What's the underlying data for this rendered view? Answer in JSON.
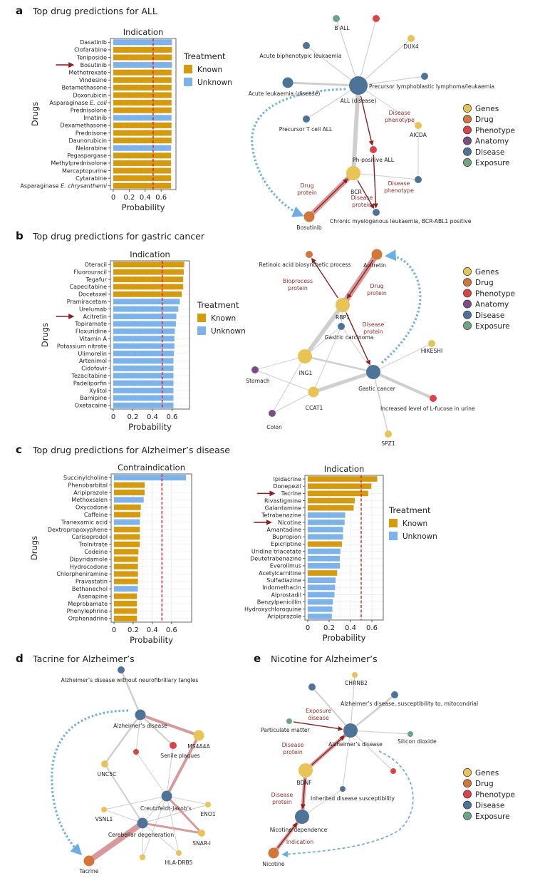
{
  "colors": {
    "known": "#D49A10",
    "unknown": "#7DB3E8",
    "threshold": "#D42020",
    "gene": "#E8C457",
    "drug": "#D2763A",
    "phenotype": "#D9434A",
    "anatomy": "#7B4F86",
    "disease": "#4D7498",
    "exposure": "#6FA583",
    "edge": "#cfcfcf",
    "path_edge": "#D9989A",
    "path_arrow": "#8E1F1F",
    "prediction": "#6EAEE6",
    "edge_label": "#8a2b2b"
  },
  "treatment_legend": {
    "title": "Treatment",
    "items": [
      {
        "label": "Known",
        "key": "known"
      },
      {
        "label": "Unknown",
        "key": "unknown"
      }
    ]
  },
  "node_legend": {
    "items": [
      {
        "label": "Genes",
        "key": "gene"
      },
      {
        "label": "Drug",
        "key": "drug"
      },
      {
        "label": "Phenotype",
        "key": "phenotype"
      },
      {
        "label": "Anatomy",
        "key": "anatomy"
      },
      {
        "label": "Disease",
        "key": "disease"
      },
      {
        "label": "Exposure",
        "key": "exposure"
      }
    ],
    "items_no_anatomy": [
      {
        "label": "Genes",
        "key": "gene"
      },
      {
        "label": "Drug",
        "key": "drug"
      },
      {
        "label": "Phenotype",
        "key": "phenotype"
      },
      {
        "label": "Disease",
        "key": "disease"
      },
      {
        "label": "Exposure",
        "key": "exposure"
      }
    ]
  },
  "panels": {
    "a": {
      "letter": "a",
      "title": "Top drug predictions for ALL"
    },
    "b": {
      "letter": "b",
      "title": "Top drug predictions for gastric cancer"
    },
    "c": {
      "letter": "c",
      "title": "Top drug predictions for Alzheimer’s disease"
    },
    "d": {
      "letter": "d",
      "title": "Tacrine for Alzheimer’s"
    },
    "e": {
      "letter": "e",
      "title": "Nicotine for Alzheimer’s"
    }
  },
  "chart_data": [
    {
      "id": "a",
      "type": "bar",
      "orientation": "horizontal",
      "title": "Indication",
      "xlabel": "Probability",
      "ylabel": "Drugs",
      "xlim": [
        0,
        0.75
      ],
      "xticks": [
        "0",
        "0.2",
        "0.4",
        "0.6"
      ],
      "xtick_values": [
        0,
        0.2,
        0.4,
        0.6
      ],
      "threshold": 0.5,
      "grid": true,
      "legend": "right",
      "highlight": [
        "Bosutinib"
      ],
      "categories": [
        "Dasatinib",
        "Clofarabine",
        "Teniposide",
        "Bosutinib",
        "Methotrexate",
        "Vindesine",
        "Betamethasone",
        "Doxorubicin",
        "Asparaginase E. coli",
        "Prednisolone",
        "Imatinib",
        "Dexamethasone",
        "Prednisone",
        "Daunorubicin",
        "Nelarabine",
        "Pegaspargase",
        "Methylprednisolone",
        "Mercaptopurine",
        "Cytarabine",
        "Asparaginase E. chrysanthemi"
      ],
      "values": [
        0.735,
        0.735,
        0.735,
        0.735,
        0.73,
        0.73,
        0.73,
        0.73,
        0.73,
        0.73,
        0.73,
        0.73,
        0.73,
        0.73,
        0.725,
        0.725,
        0.725,
        0.725,
        0.725,
        0.725
      ],
      "treatment": [
        "unknown",
        "known",
        "known",
        "unknown",
        "known",
        "known",
        "known",
        "known",
        "known",
        "known",
        "unknown",
        "known",
        "known",
        "known",
        "unknown",
        "known",
        "known",
        "known",
        "known",
        "known"
      ]
    },
    {
      "id": "b",
      "type": "bar",
      "orientation": "horizontal",
      "title": "Indication",
      "xlabel": "Probability",
      "ylabel": "Drugs",
      "xlim": [
        0,
        0.75
      ],
      "xticks": [
        "0",
        "0.2",
        "0.4",
        "0.6"
      ],
      "xtick_values": [
        0,
        0.2,
        0.4,
        0.6
      ],
      "threshold": 0.5,
      "grid": true,
      "legend": "right",
      "highlight": [
        "Acitretin"
      ],
      "categories": [
        "Oteracil",
        "Fluorouracil",
        "Tegafur",
        "Capecitabine",
        "Docetaxel",
        "Pramiracetam",
        "Urelumab",
        "Acitretin",
        "Topiramate",
        "Floxuridine",
        "Vitamin A",
        "Potassium nitrate",
        "Ulimorelin",
        "Artenimol",
        "Cidofovir",
        "Tezacitabine",
        "Padeliporfin",
        "Xylitol",
        "Bamipine",
        "Oxetacaine"
      ],
      "values": [
        0.725,
        0.72,
        0.715,
        0.715,
        0.7,
        0.68,
        0.665,
        0.645,
        0.64,
        0.63,
        0.625,
        0.625,
        0.62,
        0.615,
        0.615,
        0.615,
        0.615,
        0.615,
        0.615,
        0.615
      ],
      "treatment": [
        "known",
        "known",
        "known",
        "known",
        "known",
        "unknown",
        "unknown",
        "unknown",
        "unknown",
        "unknown",
        "unknown",
        "unknown",
        "unknown",
        "unknown",
        "unknown",
        "unknown",
        "unknown",
        "unknown",
        "unknown",
        "unknown"
      ]
    },
    {
      "id": "c-contra",
      "type": "bar",
      "orientation": "horizontal",
      "title": "Contraindication",
      "xlabel": "Probability",
      "ylabel": "Drugs",
      "xlim": [
        0,
        0.78
      ],
      "xticks": [
        "0",
        "0.2",
        "0.4",
        "0.6"
      ],
      "xtick_values": [
        0,
        0.2,
        0.4,
        0.6
      ],
      "threshold": 0.5,
      "grid": true,
      "legend": "none",
      "highlight": [],
      "categories": [
        "Succinylcholine",
        "Phenobarbital",
        "Aripiprazole",
        "Methoxsalen",
        "Oxycodone",
        "Caffeine",
        "Tranexamic acid",
        "Dextropropoxyphene",
        "Carisoprodol",
        "Trolnitrate",
        "Codeine",
        "Dipyridamole",
        "Hydrocodone",
        "Chlorpheniramine",
        "Pravastatin",
        "Bethanechol",
        "Asenapine",
        "Meprobamate",
        "Phenylephrine",
        "Orphenadrine"
      ],
      "values": [
        0.75,
        0.32,
        0.32,
        0.31,
        0.28,
        0.275,
        0.27,
        0.27,
        0.27,
        0.27,
        0.255,
        0.25,
        0.25,
        0.25,
        0.25,
        0.25,
        0.24,
        0.24,
        0.24,
        0.24
      ],
      "treatment": [
        "unknown",
        "known",
        "known",
        "unknown",
        "known",
        "known",
        "unknown",
        "known",
        "known",
        "known",
        "known",
        "known",
        "known",
        "known",
        "known",
        "unknown",
        "known",
        "known",
        "known",
        "known"
      ]
    },
    {
      "id": "c-ind",
      "type": "bar",
      "orientation": "horizontal",
      "title": "Indication",
      "xlabel": "Probability",
      "ylabel": "",
      "xlim": [
        0,
        0.68
      ],
      "xticks": [
        "0",
        "0.2",
        "0.4",
        "0.6"
      ],
      "xtick_values": [
        0,
        0.2,
        0.4,
        0.6
      ],
      "threshold": 0.5,
      "grid": true,
      "legend": "right",
      "highlight": [
        "Tacrine",
        "Nicotine"
      ],
      "categories": [
        "Ipidacrine",
        "Donepezil",
        "Tacrine",
        "Rivastigmine",
        "Galantamine",
        "Tetrabenazine",
        "Nicotine",
        "Amantadine",
        "Bupropion",
        "Epicriptine",
        "Uridine triacetate",
        "Deutetrabenazine",
        "Everolimus",
        "Acetylcarnitine",
        "Sulfadiazine",
        "Indomethacin",
        "Alprostadil",
        "Benzylpenicillin",
        "Hydroxychloroquine",
        "Aripiprazole"
      ],
      "values": [
        0.65,
        0.595,
        0.565,
        0.44,
        0.43,
        0.35,
        0.345,
        0.33,
        0.33,
        0.32,
        0.305,
        0.3,
        0.3,
        0.275,
        0.26,
        0.255,
        0.25,
        0.235,
        0.23,
        0.225
      ],
      "treatment": [
        "known",
        "known",
        "known",
        "known",
        "known",
        "unknown",
        "unknown",
        "unknown",
        "unknown",
        "known",
        "unknown",
        "unknown",
        "unknown",
        "known",
        "unknown",
        "unknown",
        "unknown",
        "unknown",
        "unknown",
        "unknown"
      ]
    }
  ],
  "networks": {
    "a": {
      "nodes": [
        {
          "id": "all",
          "label": "ALL (disease)",
          "type": "disease",
          "size": "xl"
        },
        {
          "id": "ball",
          "label": "B ALL",
          "type": "exposure",
          "size": "s"
        },
        {
          "id": "ph_top",
          "label": "",
          "type": "phenotype",
          "size": "s"
        },
        {
          "id": "dux4",
          "label": "DUX4",
          "type": "gene",
          "size": "s"
        },
        {
          "id": "abl",
          "label": "Acute biphenotypic leukaemia",
          "type": "disease",
          "size": "s"
        },
        {
          "id": "acute",
          "label": "Acute leukaemia (disease)",
          "type": "disease",
          "size": "m"
        },
        {
          "id": "prelym",
          "label": "Precursor lymphoblastic lymphoma/leukaemia",
          "type": "disease",
          "size": "s"
        },
        {
          "id": "pretall",
          "label": "Precursor T cell ALL",
          "type": "disease",
          "size": "s"
        },
        {
          "id": "aicda",
          "label": "AICDA",
          "type": "gene",
          "size": "s"
        },
        {
          "id": "phall",
          "label": "Ph-positive ALL",
          "type": "phenotype",
          "size": "s"
        },
        {
          "id": "bcr",
          "label": "BCR",
          "type": "gene",
          "size": "l"
        },
        {
          "id": "dis2",
          "label": "",
          "type": "disease",
          "size": "s"
        },
        {
          "id": "cml",
          "label": "Chronic myelogenous leukaemia, BCR-ABL1 positive",
          "type": "disease",
          "size": "s"
        },
        {
          "id": "bosutinib",
          "label": "Bosutinib",
          "type": "drug",
          "size": "m"
        }
      ],
      "edge_labels": [
        "Disease phenotype",
        "Drug protein",
        "Disease protein",
        "Disease phenotype"
      ]
    },
    "b": {
      "nodes": [
        {
          "id": "retinoic",
          "label": "Retinoic acid biosynthetic process",
          "type": "drug",
          "size": "s"
        },
        {
          "id": "acitretin",
          "label": "Acitretin",
          "type": "drug",
          "size": "m"
        },
        {
          "id": "rbp1",
          "label": "RBP1",
          "type": "gene",
          "size": "l"
        },
        {
          "id": "gcarc",
          "label": "Gastric carcinoma",
          "type": "disease",
          "size": "s"
        },
        {
          "id": "ing1",
          "label": "ING1",
          "type": "gene",
          "size": "l"
        },
        {
          "id": "stomach",
          "label": "Stomach",
          "type": "anatomy",
          "size": "s"
        },
        {
          "id": "gcancer",
          "label": "Gastic cancer",
          "type": "disease",
          "size": "l"
        },
        {
          "id": "hikeshi",
          "label": "HIKESHI",
          "type": "gene",
          "size": "s"
        },
        {
          "id": "ccat1",
          "label": "CCAT1",
          "type": "gene",
          "size": "m"
        },
        {
          "id": "fucose",
          "label": "Increased level of L-fucose in urine",
          "type": "phenotype",
          "size": "s"
        },
        {
          "id": "colon",
          "label": "Colon",
          "type": "anatomy",
          "size": "s"
        },
        {
          "id": "spz1",
          "label": "SPZ1",
          "type": "gene",
          "size": "s"
        }
      ],
      "edge_labels": [
        "Bioprocess protein",
        "Drug protein",
        "Disease protein"
      ]
    },
    "d": {
      "nodes": [
        {
          "id": "adnft",
          "label": "Alzheimer’s  disease without neurofibrillary tangles",
          "type": "disease",
          "size": "s"
        },
        {
          "id": "ad",
          "label": "Alzheimer’s  disease",
          "type": "disease",
          "size": "m"
        },
        {
          "id": "ms4a4a",
          "label": "MS4A4A",
          "type": "gene",
          "size": "m"
        },
        {
          "id": "senile",
          "label": "Senile plaques",
          "type": "phenotype",
          "size": "s"
        },
        {
          "id": "ph2",
          "label": "",
          "type": "phenotype",
          "size": "xs"
        },
        {
          "id": "unc5c",
          "label": "UNC5C",
          "type": "gene",
          "size": "s"
        },
        {
          "id": "cjd",
          "label": "Creutzfeldt-Jakob’s",
          "type": "disease",
          "size": "m"
        },
        {
          "id": "vsnl1",
          "label": "VSNL1",
          "type": "gene",
          "size": "xs"
        },
        {
          "id": "eno1",
          "label": "ENO1",
          "type": "gene",
          "size": "xs"
        },
        {
          "id": "cereb",
          "label": "Cerebellar degeneration",
          "type": "disease",
          "size": "m"
        },
        {
          "id": "snari",
          "label": "SNAR-I",
          "type": "gene",
          "size": "s"
        },
        {
          "id": "hladrb5",
          "label": "HLA-DRB5",
          "type": "gene",
          "size": "xs"
        },
        {
          "id": "g_unl",
          "label": "",
          "type": "gene",
          "size": "xs"
        },
        {
          "id": "tacrine",
          "label": "Tacrine",
          "type": "drug",
          "size": "m"
        }
      ]
    },
    "e": {
      "nodes": [
        {
          "id": "chrnb2",
          "label": "CHRNB2",
          "type": "gene",
          "size": "xs"
        },
        {
          "id": "d_top",
          "label": "",
          "type": "disease",
          "size": "s"
        },
        {
          "id": "admito",
          "label": "Alzheimer’s  disease, susceptibility to, mitocondrial",
          "type": "disease",
          "size": "s"
        },
        {
          "id": "pm",
          "label": "Particulate matter",
          "type": "exposure",
          "size": "xs"
        },
        {
          "id": "ad",
          "label": "Alzheimer’s  disease",
          "type": "disease",
          "size": "l"
        },
        {
          "id": "sio2",
          "label": "Silicon dioxide",
          "type": "exposure",
          "size": "xs"
        },
        {
          "id": "bdnf",
          "label": "BDNF",
          "type": "gene",
          "size": "l"
        },
        {
          "id": "ph",
          "label": "",
          "type": "phenotype",
          "size": "xs"
        },
        {
          "id": "inherit",
          "label": "Inherited disease susceptibility",
          "type": "disease",
          "size": "xs"
        },
        {
          "id": "nicdep",
          "label": "Nicotine dependence",
          "type": "disease",
          "size": "l"
        },
        {
          "id": "nicotine",
          "label": "Nicotine",
          "type": "drug",
          "size": "m"
        }
      ],
      "edge_labels": [
        "Exposure disease",
        "Disease protein",
        "Disease protein",
        "Indication"
      ]
    }
  }
}
